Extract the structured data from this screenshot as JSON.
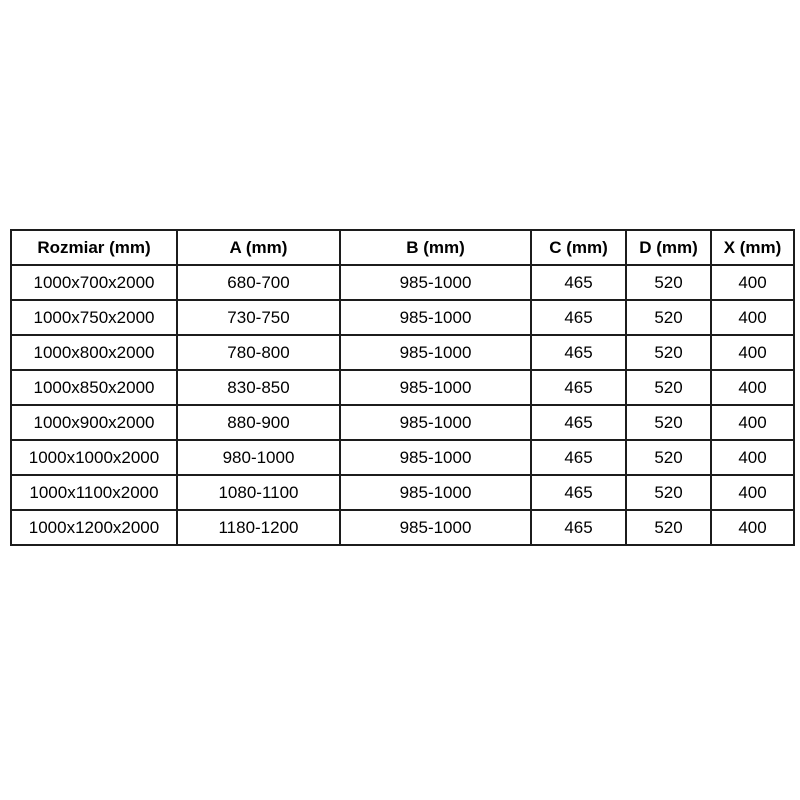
{
  "table": {
    "columns": [
      "Rozmiar (mm)",
      "A (mm)",
      "B (mm)",
      "C (mm)",
      "D (mm)",
      "X (mm)"
    ],
    "rows": [
      [
        "1000x700x2000",
        "680-700",
        "985-1000",
        "465",
        "520",
        "400"
      ],
      [
        "1000x750x2000",
        "730-750",
        "985-1000",
        "465",
        "520",
        "400"
      ],
      [
        "1000x800x2000",
        "780-800",
        "985-1000",
        "465",
        "520",
        "400"
      ],
      [
        "1000x850x2000",
        "830-850",
        "985-1000",
        "465",
        "520",
        "400"
      ],
      [
        "1000x900x2000",
        "880-900",
        "985-1000",
        "465",
        "520",
        "400"
      ],
      [
        "1000x1000x2000",
        "980-1000",
        "985-1000",
        "465",
        "520",
        "400"
      ],
      [
        "1000x1100x2000",
        "1080-1100",
        "985-1000",
        "465",
        "520",
        "400"
      ],
      [
        "1000x1200x2000",
        "1180-1200",
        "985-1000",
        "465",
        "520",
        "400"
      ]
    ],
    "colors": {
      "border": "#1c1c1c",
      "background": "#ffffff",
      "text": "#000000"
    }
  }
}
